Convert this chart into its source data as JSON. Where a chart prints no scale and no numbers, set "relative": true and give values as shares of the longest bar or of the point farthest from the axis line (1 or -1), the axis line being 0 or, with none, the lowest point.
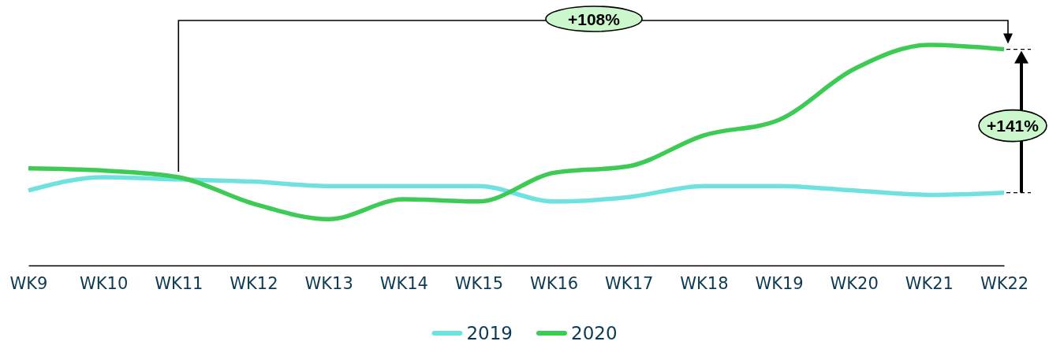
{
  "chart_data": {
    "type": "line",
    "relative": true,
    "legend": "bottom",
    "categories": [
      "WK9",
      "WK10",
      "WK11",
      "WK12",
      "WK13",
      "WK14",
      "WK15",
      "WK16",
      "WK17",
      "WK18",
      "WK19",
      "WK20",
      "WK21",
      "WK22"
    ],
    "series": [
      {
        "name": "2019",
        "color": "#6fe2e0",
        "values": [
          0.34,
          0.4,
          0.39,
          0.38,
          0.36,
          0.36,
          0.36,
          0.29,
          0.31,
          0.36,
          0.36,
          0.34,
          0.32,
          0.33
        ]
      },
      {
        "name": "2020",
        "color": "#3dca55",
        "values": [
          0.44,
          0.43,
          0.4,
          0.28,
          0.21,
          0.3,
          0.29,
          0.42,
          0.45,
          0.59,
          0.66,
          0.89,
          1,
          0.98
        ]
      }
    ],
    "annotations": [
      "+108%",
      "+141%"
    ]
  }
}
